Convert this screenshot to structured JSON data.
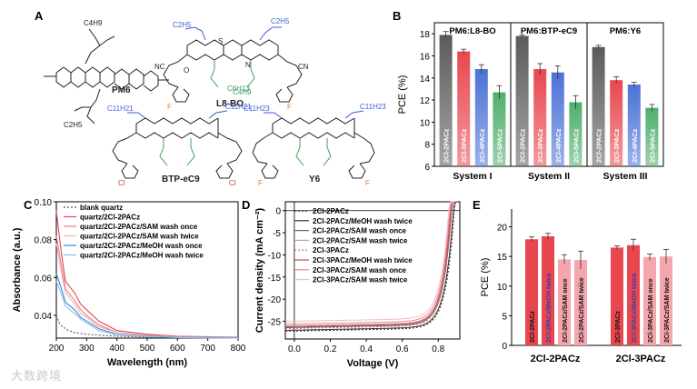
{
  "panels": {
    "A": {
      "letter": "A",
      "molecules": [
        "PM6",
        "L8-BO",
        "BTP-eC9",
        "Y6"
      ],
      "chain_labels": [
        "C2H5",
        "C4H9",
        "C6H13",
        "C11H23",
        "C11H21"
      ],
      "atoms": [
        "S",
        "N",
        "F",
        "Cl",
        "O",
        "CN",
        "NC"
      ]
    },
    "B": {
      "letter": "B"
    },
    "C": {
      "letter": "C"
    },
    "D": {
      "letter": "D"
    },
    "E": {
      "letter": "E"
    }
  },
  "watermark": "大数跨境",
  "colors": {
    "dark": "#5b5b5b",
    "red": "#e8474f",
    "blue": "#4b72d6",
    "green": "#4fae6c",
    "pink": "#f0b4ba",
    "light_blue": "#5aa3e8",
    "light_red": "#f5a6ad"
  },
  "chart_data": [
    {
      "id": "B",
      "type": "bar",
      "ylabel": "PCE (%)",
      "ylim": [
        6,
        19
      ],
      "yticks": [
        6,
        8,
        10,
        12,
        14,
        16,
        18
      ],
      "groups": [
        {
          "title": "PM6:L8-BO",
          "xlabel": "System I",
          "bars": [
            {
              "label": "2Cl-2PACz",
              "value": 17.9,
              "err": 0.3
            },
            {
              "label": "2Cl-3PACz",
              "value": 16.4,
              "err": 0.2
            },
            {
              "label": "2Cl-4PACz",
              "value": 14.8,
              "err": 0.4
            },
            {
              "label": "2Cl-5PACz",
              "value": 12.7,
              "err": 0.6
            }
          ]
        },
        {
          "title": "PM6:BTP-eC9",
          "xlabel": "System II",
          "bars": [
            {
              "label": "2Cl-2PACz",
              "value": 17.8,
              "err": 0.1
            },
            {
              "label": "2Cl-3PACz",
              "value": 14.8,
              "err": 0.5
            },
            {
              "label": "2Cl-4PACz",
              "value": 14.5,
              "err": 0.6
            },
            {
              "label": "2Cl-5PACz",
              "value": 11.8,
              "err": 0.6
            }
          ]
        },
        {
          "title": "PM6:Y6",
          "xlabel": "System III",
          "bars": [
            {
              "label": "2Cl-2PACz",
              "value": 16.8,
              "err": 0.15
            },
            {
              "label": "2Cl-3PACz",
              "value": 13.8,
              "err": 0.3
            },
            {
              "label": "2Cl-4PACz",
              "value": 13.4,
              "err": 0.2
            },
            {
              "label": "2Cl-5PACz",
              "value": 11.3,
              "err": 0.3
            }
          ]
        }
      ]
    },
    {
      "id": "C",
      "type": "line",
      "xlabel": "Wavelength (nm)",
      "ylabel": "Absorbance (a.u.)",
      "xlim": [
        200,
        800
      ],
      "ylim": [
        0.028,
        0.1
      ],
      "xticks": [
        200,
        300,
        400,
        500,
        600,
        700,
        800
      ],
      "yticks": [
        0.04,
        0.06,
        0.08,
        0.1
      ],
      "ytick_labels": [
        "0.04",
        "0.06",
        "0.08",
        "0.10"
      ],
      "series": [
        {
          "name": "blank quartz",
          "dash": true,
          "color": "#555555",
          "x": [
            200,
            210,
            220,
            230,
            240,
            260,
            300,
            400,
            500,
            600,
            700,
            800
          ],
          "y": [
            0.04,
            0.036,
            0.034,
            0.033,
            0.032,
            0.031,
            0.03,
            0.029,
            0.0285,
            0.0285,
            0.028,
            0.028
          ]
        },
        {
          "name": "quartz/2Cl-2PACz",
          "dash": false,
          "color": "#e8474f",
          "x": [
            200,
            215,
            230,
            245,
            260,
            280,
            300,
            340,
            400,
            500,
            600,
            800
          ],
          "y": [
            0.095,
            0.075,
            0.058,
            0.055,
            0.052,
            0.046,
            0.043,
            0.037,
            0.032,
            0.03,
            0.029,
            0.0285
          ]
        },
        {
          "name": "quartz/2Cl-2PACz/SAM wash once",
          "dash": false,
          "color": "#e87a82",
          "x": [
            200,
            215,
            230,
            245,
            260,
            280,
            300,
            340,
            400,
            500,
            600,
            800
          ],
          "y": [
            0.082,
            0.068,
            0.054,
            0.051,
            0.048,
            0.043,
            0.04,
            0.035,
            0.031,
            0.0295,
            0.0288,
            0.0283
          ]
        },
        {
          "name": "quartz/2Cl-2PACz/SAM wash twice",
          "dash": false,
          "color": "#f2b0b6",
          "x": [
            200,
            215,
            230,
            245,
            260,
            280,
            300,
            340,
            400,
            500,
            600,
            800
          ],
          "y": [
            0.078,
            0.064,
            0.052,
            0.049,
            0.046,
            0.041,
            0.039,
            0.034,
            0.031,
            0.0293,
            0.0286,
            0.0282
          ]
        },
        {
          "name": "quartz/2Cl-2PACz/MeOH wash once",
          "dash": false,
          "color": "#3a86d6",
          "x": [
            200,
            215,
            230,
            245,
            260,
            280,
            300,
            340,
            400,
            500,
            600,
            800
          ],
          "y": [
            0.062,
            0.055,
            0.047,
            0.045,
            0.043,
            0.039,
            0.037,
            0.033,
            0.03,
            0.029,
            0.0284,
            0.0281
          ]
        },
        {
          "name": "quartz/2Cl-2PACz/MeOH wash twice",
          "dash": false,
          "color": "#8cc3f0",
          "x": [
            200,
            215,
            230,
            245,
            260,
            280,
            300,
            340,
            400,
            500,
            600,
            800
          ],
          "y": [
            0.058,
            0.052,
            0.045,
            0.043,
            0.041,
            0.038,
            0.036,
            0.032,
            0.0298,
            0.0288,
            0.0283,
            0.028
          ]
        }
      ]
    },
    {
      "id": "D",
      "type": "line",
      "xlabel": "Voltage (V)",
      "ylabel": "Current density (mA cm⁻²)",
      "xlim": [
        -0.05,
        0.92
      ],
      "ylim": [
        -29,
        2
      ],
      "xticks": [
        0.0,
        0.2,
        0.4,
        0.6,
        0.8
      ],
      "xtick_labels": [
        "0.0",
        "0.2",
        "0.4",
        "0.6",
        "0.8"
      ],
      "yticks": [
        0,
        -5,
        -10,
        -15,
        -20,
        -25
      ],
      "series": [
        {
          "name": "2Cl-2PACz",
          "dash": true,
          "color": "#222222",
          "jsc": -27.2,
          "voc": 0.89
        },
        {
          "name": "2Cl-2PACz/MeOH wash twice",
          "dash": false,
          "color": "#333333",
          "jsc": -27.0,
          "voc": 0.885
        },
        {
          "name": "2Cl-2PACz/SAM wash once",
          "dash": false,
          "color": "#666666",
          "jsc": -26.4,
          "voc": 0.875
        },
        {
          "name": "2Cl-2PACz/SAM wash twice",
          "dash": false,
          "color": "#aaaaaa",
          "jsc": -26.0,
          "voc": 0.87
        },
        {
          "name": "2Cl-3PACz",
          "dash": true,
          "color": "#e05a62",
          "jsc": -26.6,
          "voc": 0.875
        },
        {
          "name": "2Cl-3PACz/MeOH wash twice",
          "dash": false,
          "color": "#d8424b",
          "jsc": -26.2,
          "voc": 0.87
        },
        {
          "name": "2Cl-3PACz/SAM wash once",
          "dash": false,
          "color": "#e8868d",
          "jsc": -25.6,
          "voc": 0.865
        },
        {
          "name": "2Cl-3PACz/SAM wash twice",
          "dash": false,
          "color": "#f3bcc1",
          "jsc": -25.0,
          "voc": 0.86
        }
      ]
    },
    {
      "id": "E",
      "type": "bar",
      "ylabel": "PCE (%)",
      "ylim": [
        0,
        23
      ],
      "yticks": [
        0,
        5,
        10,
        15,
        20
      ],
      "groups": [
        {
          "xlabel": "2Cl-2PACz",
          "bars": [
            {
              "label": "2Cl-2PACz",
              "value": 17.9,
              "err": 0.4
            },
            {
              "label": "2Cl-2PACz/MeOH twice",
              "value": 18.4,
              "err": 0.5
            },
            {
              "label": "2Cl-2PACz/SAM once",
              "value": 14.5,
              "err": 0.8
            },
            {
              "label": "2Cl-2PACz/SAM twice",
              "value": 14.4,
              "err": 1.5
            }
          ]
        },
        {
          "xlabel": "2Cl-3PACz",
          "bars": [
            {
              "label": "2Cl-3PACz",
              "value": 16.5,
              "err": 0.3
            },
            {
              "label": "2Cl-3PACz/MeOH twice",
              "value": 16.9,
              "err": 1.0
            },
            {
              "label": "2Cl-3PACz/SAM once",
              "value": 14.9,
              "err": 0.5
            },
            {
              "label": "2Cl-3PACz/SAM twice",
              "value": 15.0,
              "err": 1.2
            }
          ]
        }
      ]
    }
  ]
}
